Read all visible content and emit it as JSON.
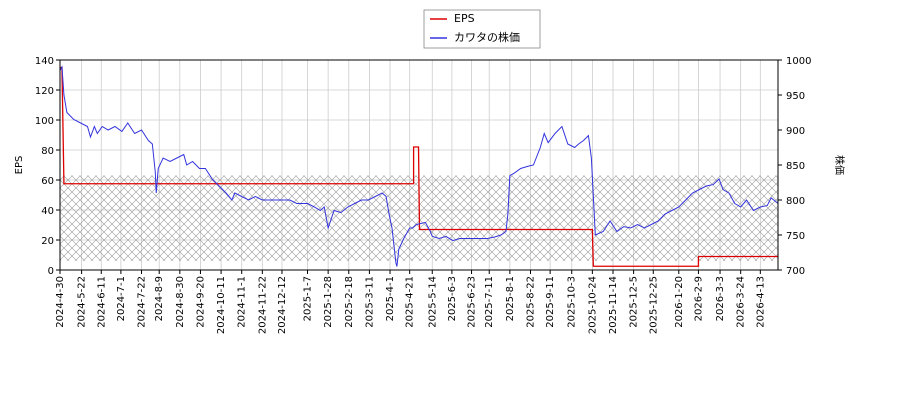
{
  "chart_data": {
    "type": "line",
    "title": "",
    "legend": {
      "placement": "top-center",
      "entries": [
        {
          "label": "EPS",
          "color": "#dd0000"
        },
        {
          "label": "カワタの株価",
          "color": "#3333dd"
        }
      ]
    },
    "left_axis": {
      "label": "EPS",
      "range": [
        0,
        140
      ],
      "ticks": [
        "0",
        "20",
        "40",
        "60",
        "80",
        "100",
        "120",
        "140"
      ]
    },
    "right_axis": {
      "label": "株価",
      "range": [
        700,
        1000
      ],
      "ticks": [
        "700",
        "750",
        "800",
        "850",
        "900",
        "950",
        "1000"
      ]
    },
    "x_axis": {
      "range": [
        "2024-04-30",
        "2026-05-01"
      ],
      "ticks": [
        "2024-4-30",
        "2024-5-22",
        "2024-6-11",
        "2024-7-1",
        "2024-7-22",
        "2024-8-9",
        "2024-8-30",
        "2024-9-20",
        "2024-10-11",
        "2024-11-1",
        "2024-11-22",
        "2024-12-12",
        "2025-1-7",
        "2025-1-28",
        "2025-2-18",
        "2025-3-11",
        "2025-4-1",
        "2025-4-21",
        "2025-5-14",
        "2025-6-3",
        "2025-6-23",
        "2025-7-11",
        "2025-8-1",
        "2025-8-22",
        "2025-9-11",
        "2025-10-3",
        "2025-10-24",
        "2025-11-14",
        "2025-12-5",
        "2025-12-25",
        "2026-1-20",
        "2026-2-9",
        "2026-3-3",
        "2026-3-24",
        "2026-4-13"
      ]
    },
    "grid": true,
    "hatched_band": {
      "axis": "right",
      "from": 713,
      "to": 835
    },
    "series": [
      {
        "name": "EPS",
        "axis": "left",
        "color": "#dd0000",
        "step": true,
        "points": [
          [
            "2024-04-30",
            135
          ],
          [
            "2024-05-02",
            135
          ],
          [
            "2024-05-04",
            57.5
          ],
          [
            "2025-04-25",
            57.5
          ],
          [
            "2025-04-25",
            82
          ],
          [
            "2025-04-30",
            82
          ],
          [
            "2025-05-01",
            27
          ],
          [
            "2025-10-24",
            27
          ],
          [
            "2025-10-25",
            2.5
          ],
          [
            "2026-02-09",
            2.5
          ],
          [
            "2026-02-09",
            9
          ],
          [
            "2026-05-01",
            9
          ]
        ]
      },
      {
        "name": "カワタの株価",
        "axis": "right",
        "color": "#3333dd",
        "step": false,
        "points": [
          [
            "2024-04-30",
            985
          ],
          [
            "2024-05-02",
            990
          ],
          [
            "2024-05-04",
            950
          ],
          [
            "2024-05-07",
            925
          ],
          [
            "2024-05-14",
            915
          ],
          [
            "2024-05-21",
            910
          ],
          [
            "2024-05-28",
            905
          ],
          [
            "2024-05-31",
            890
          ],
          [
            "2024-06-04",
            905
          ],
          [
            "2024-06-07",
            895
          ],
          [
            "2024-06-12",
            905
          ],
          [
            "2024-06-18",
            900
          ],
          [
            "2024-06-25",
            905
          ],
          [
            "2024-07-02",
            898
          ],
          [
            "2024-07-08",
            910
          ],
          [
            "2024-07-15",
            895
          ],
          [
            "2024-07-22",
            900
          ],
          [
            "2024-07-29",
            885
          ],
          [
            "2024-08-02",
            880
          ],
          [
            "2024-08-05",
            840
          ],
          [
            "2024-08-06",
            810
          ],
          [
            "2024-08-08",
            845
          ],
          [
            "2024-08-13",
            860
          ],
          [
            "2024-08-20",
            855
          ],
          [
            "2024-08-27",
            860
          ],
          [
            "2024-09-03",
            865
          ],
          [
            "2024-09-06",
            850
          ],
          [
            "2024-09-12",
            855
          ],
          [
            "2024-09-19",
            845
          ],
          [
            "2024-09-25",
            845
          ],
          [
            "2024-10-02",
            830
          ],
          [
            "2024-10-09",
            820
          ],
          [
            "2024-10-16",
            810
          ],
          [
            "2024-10-22",
            800
          ],
          [
            "2024-10-25",
            810
          ],
          [
            "2024-11-01",
            805
          ],
          [
            "2024-11-08",
            800
          ],
          [
            "2024-11-15",
            805
          ],
          [
            "2024-11-22",
            800
          ],
          [
            "2024-11-29",
            800
          ],
          [
            "2024-12-06",
            800
          ],
          [
            "2024-12-13",
            800
          ],
          [
            "2024-12-20",
            800
          ],
          [
            "2024-12-27",
            795
          ],
          [
            "2025-01-07",
            795
          ],
          [
            "2025-01-14",
            790
          ],
          [
            "2025-01-20",
            785
          ],
          [
            "2025-01-24",
            790
          ],
          [
            "2025-01-28",
            760
          ],
          [
            "2025-02-03",
            785
          ],
          [
            "2025-02-10",
            782
          ],
          [
            "2025-02-17",
            790
          ],
          [
            "2025-02-24",
            795
          ],
          [
            "2025-03-03",
            800
          ],
          [
            "2025-03-10",
            800
          ],
          [
            "2025-03-17",
            805
          ],
          [
            "2025-03-24",
            810
          ],
          [
            "2025-03-28",
            805
          ],
          [
            "2025-03-31",
            780
          ],
          [
            "2025-04-03",
            760
          ],
          [
            "2025-04-07",
            710
          ],
          [
            "2025-04-08",
            705
          ],
          [
            "2025-04-10",
            730
          ],
          [
            "2025-04-15",
            745
          ],
          [
            "2025-04-21",
            760
          ],
          [
            "2025-04-24",
            760
          ],
          [
            "2025-04-28",
            765
          ],
          [
            "2025-05-07",
            768
          ],
          [
            "2025-05-12",
            755
          ],
          [
            "2025-05-14",
            748
          ],
          [
            "2025-05-21",
            745
          ],
          [
            "2025-05-28",
            748
          ],
          [
            "2025-06-04",
            742
          ],
          [
            "2025-06-11",
            745
          ],
          [
            "2025-06-18",
            745
          ],
          [
            "2025-06-25",
            745
          ],
          [
            "2025-07-02",
            745
          ],
          [
            "2025-07-09",
            745
          ],
          [
            "2025-07-16",
            747
          ],
          [
            "2025-07-23",
            750
          ],
          [
            "2025-07-28",
            755
          ],
          [
            "2025-07-30",
            780
          ],
          [
            "2025-08-01",
            835
          ],
          [
            "2025-08-05",
            838
          ],
          [
            "2025-08-12",
            845
          ],
          [
            "2025-08-19",
            848
          ],
          [
            "2025-08-25",
            850
          ],
          [
            "2025-09-01",
            875
          ],
          [
            "2025-09-05",
            895
          ],
          [
            "2025-09-09",
            882
          ],
          [
            "2025-09-16",
            895
          ],
          [
            "2025-09-23",
            905
          ],
          [
            "2025-09-29",
            880
          ],
          [
            "2025-10-06",
            875
          ],
          [
            "2025-10-10",
            880
          ],
          [
            "2025-10-15",
            885
          ],
          [
            "2025-10-20",
            892
          ],
          [
            "2025-10-23",
            860
          ],
          [
            "2025-10-27",
            750
          ],
          [
            "2025-11-04",
            755
          ],
          [
            "2025-11-11",
            770
          ],
          [
            "2025-11-18",
            755
          ],
          [
            "2025-11-25",
            762
          ],
          [
            "2025-12-02",
            760
          ],
          [
            "2025-12-09",
            765
          ],
          [
            "2025-12-16",
            760
          ],
          [
            "2025-12-23",
            765
          ],
          [
            "2025-12-30",
            770
          ],
          [
            "2026-01-06",
            780
          ],
          [
            "2026-01-13",
            785
          ],
          [
            "2026-01-20",
            790
          ],
          [
            "2026-01-27",
            800
          ],
          [
            "2026-02-03",
            810
          ],
          [
            "2026-02-10",
            815
          ],
          [
            "2026-02-17",
            820
          ],
          [
            "2026-02-24",
            822
          ],
          [
            "2026-03-02",
            830
          ],
          [
            "2026-03-06",
            815
          ],
          [
            "2026-03-12",
            810
          ],
          [
            "2026-03-18",
            795
          ],
          [
            "2026-03-24",
            790
          ],
          [
            "2026-03-30",
            800
          ],
          [
            "2026-04-06",
            785
          ],
          [
            "2026-04-13",
            790
          ],
          [
            "2026-04-20",
            792
          ],
          [
            "2026-04-24",
            803
          ],
          [
            "2026-05-01",
            795
          ]
        ]
      }
    ]
  }
}
